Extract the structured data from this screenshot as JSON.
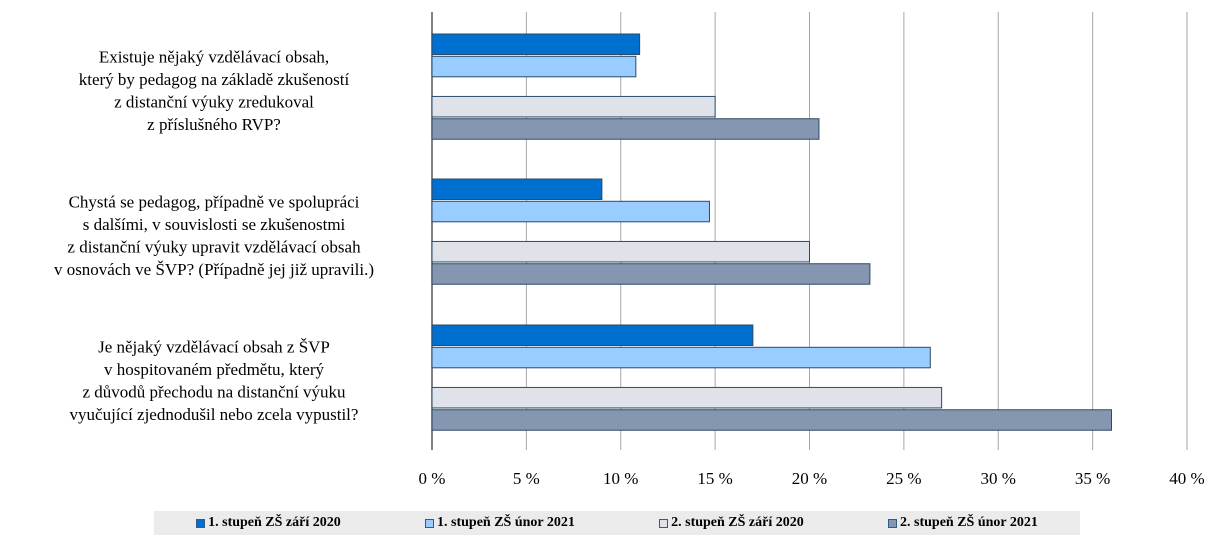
{
  "chart_data": {
    "type": "bar",
    "orientation": "horizontal",
    "categories": [
      [
        "Existuje nějaký vzdělávací obsah,",
        "který by pedagog na základě zkušeností",
        "z distanční výuky zredukoval",
        "z příslušného RVP?"
      ],
      [
        "Chystá se pedagog, případně ve spolupráci",
        "s dalšími, v souvislosti se zkušenostmi",
        "z distanční výuky upravit vzdělávací obsah",
        "v osnovách ve ŠVP? (Případně jej již upravili.)"
      ],
      [
        "Je nějaký vzdělávací obsah z ŠVP",
        "v hospitovaném předmětu, který",
        "z důvodů přechodu na distanční výuku",
        "vyučující zjednodušil nebo zcela vypustil?"
      ]
    ],
    "series": [
      {
        "name": "1. stupeň ZŠ září 2020",
        "color": "#0070d0",
        "values": [
          11,
          9,
          17
        ]
      },
      {
        "name": "1. stupeň ZŠ únor 2021",
        "color": "#99ccff",
        "values": [
          10.8,
          14.7,
          26.4
        ]
      },
      {
        "name": "2. stupeň ZŠ září 2020",
        "color": "#dfe2e8",
        "values": [
          15,
          20,
          27
        ]
      },
      {
        "name": "2. stupeň ZŠ únor 2021",
        "color": "#8496b0",
        "values": [
          20.5,
          23.2,
          36
        ]
      }
    ],
    "xlim": [
      0,
      40
    ],
    "xticks": [
      0,
      5,
      10,
      15,
      20,
      25,
      30,
      35,
      40
    ],
    "xtick_labels": [
      "0 %",
      "5 %",
      "10 %",
      "15 %",
      "20 %",
      "25 %",
      "30 %",
      "35 %",
      "40 %"
    ],
    "grid": "vertical",
    "legend_position": "bottom"
  }
}
